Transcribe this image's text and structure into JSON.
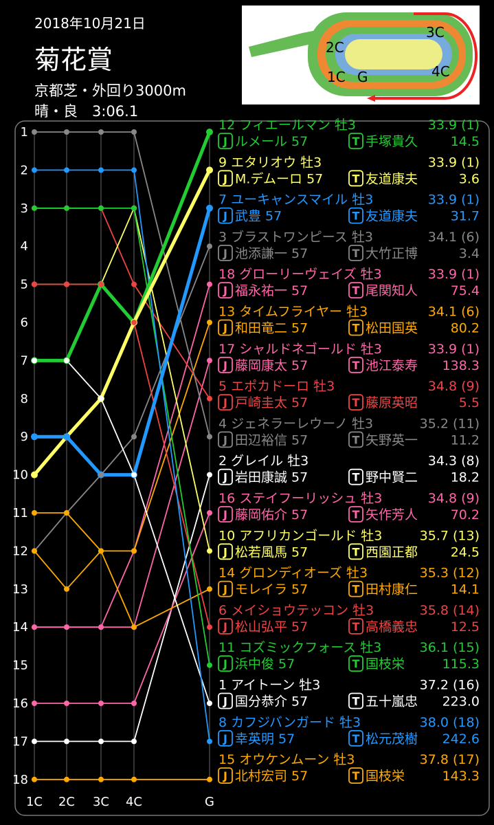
{
  "race": {
    "date": "2018年10月21日",
    "title": "菊花賞",
    "course": "京都芝・外回り3000m",
    "result": "晴・良　3:06.1"
  },
  "course_map": {
    "labels": [
      "2C",
      "3C",
      "1C",
      "G",
      "4C"
    ]
  },
  "jockey_mark": "J",
  "trainer_mark": "T",
  "chart_data": {
    "type": "line",
    "x": [
      "1C",
      "2C",
      "3C",
      "4C",
      "G"
    ],
    "y_ticks": [
      "1",
      "2",
      "3",
      "4",
      "5",
      "6",
      "7",
      "8",
      "9",
      "10",
      "11",
      "12",
      "13",
      "14",
      "15",
      "16",
      "17",
      "18"
    ],
    "ylim": [
      1,
      18
    ],
    "y_inverted": true,
    "series": [
      {
        "name": "12 フィエールマン 牡3",
        "last3f": "33.9 (1)",
        "jockey": "ルメール 57",
        "trainer": "手塚貴久",
        "odds": "14.5",
        "color": "#22cc33",
        "bold": true,
        "values": [
          7,
          7,
          5,
          6,
          1
        ]
      },
      {
        "name": "9 エタリオウ 牡3",
        "last3f": "33.9 (1)",
        "jockey": "M.デムーロ 57",
        "trainer": "友道康夫",
        "odds": "3.6",
        "color": "#ffff66",
        "bold": true,
        "values": [
          10,
          9,
          8,
          6,
          2
        ]
      },
      {
        "name": "7 ユーキャンスマイル 牡3",
        "last3f": "33.9 (1)",
        "jockey": "武豊 57",
        "trainer": "友道康夫",
        "odds": "31.7",
        "color": "#2299ff",
        "bold": true,
        "values": [
          9,
          9,
          10,
          10,
          3
        ]
      },
      {
        "name": "3 ブラストワンピース 牡3",
        "last3f": "34.1 (6)",
        "jockey": "池添謙一 57",
        "trainer": "大竹正博",
        "odds": "3.4",
        "color": "#888888",
        "values": [
          12,
          11,
          10,
          9,
          4
        ]
      },
      {
        "name": "18 グローリーヴェイズ 牡3",
        "last3f": "33.9 (1)",
        "jockey": "福永祐一 57",
        "trainer": "尾関知人",
        "odds": "75.4",
        "color": "#ff66aa",
        "values": [
          14,
          14,
          14,
          12,
          5
        ]
      },
      {
        "name": "13 タイムフライヤー 牡3",
        "last3f": "34.1 (6)",
        "jockey": "和田竜二 57",
        "trainer": "松田国英",
        "odds": "80.2",
        "color": "#ffaa00",
        "values": [
          11,
          11,
          12,
          12,
          6
        ]
      },
      {
        "name": "17 シャルドネゴールド 牡3",
        "last3f": "33.9 (1)",
        "jockey": "藤岡康太 57",
        "trainer": "池江泰寿",
        "odds": "138.3",
        "color": "#ff66aa",
        "values": [
          14,
          14,
          14,
          14,
          7
        ]
      },
      {
        "name": "5 エポカドーロ 牡3",
        "last3f": "34.8 (9)",
        "jockey": "戸崎圭太 57",
        "trainer": "藤原英昭",
        "odds": "5.5",
        "color": "#ee4444",
        "values": [
          3,
          3,
          3,
          5,
          8
        ]
      },
      {
        "name": "4 ジェネラーレウーノ 牡3",
        "last3f": "35.2 (11)",
        "jockey": "田辺裕信 57",
        "trainer": "矢野英一",
        "odds": "11.2",
        "color": "#888888",
        "values": [
          1,
          1,
          1,
          1,
          9
        ]
      },
      {
        "name": "2 グレイル 牡3",
        "last3f": "34.3 (8)",
        "jockey": "岩田康誠 57",
        "trainer": "野中賢二",
        "odds": "18.2",
        "color": "#ffffff",
        "values": [
          17,
          17,
          17,
          17,
          10
        ]
      },
      {
        "name": "16 ステイフーリッシュ 牡3",
        "last3f": "34.8 (9)",
        "jockey": "藤岡佑介 57",
        "trainer": "矢作芳人",
        "odds": "70.2",
        "color": "#ff66aa",
        "values": [
          16,
          16,
          16,
          16,
          11
        ]
      },
      {
        "name": "10 アフリカンゴールド 牡3",
        "last3f": "35.7 (13)",
        "jockey": "松若風馬 57",
        "trainer": "西園正都",
        "odds": "24.5",
        "color": "#ffff66",
        "values": [
          5,
          5,
          5,
          3,
          12
        ]
      },
      {
        "name": "14 グロンディオーズ 牡3",
        "last3f": "35.3 (12)",
        "jockey": "モレイラ 57",
        "trainer": "田村康仁",
        "odds": "14.1",
        "color": "#ffaa00",
        "values": [
          12,
          13,
          12,
          14,
          13
        ]
      },
      {
        "name": "6 メイショウテッコン 牡3",
        "last3f": "35.8 (14)",
        "jockey": "松山弘平 57",
        "trainer": "高橋義忠",
        "odds": "12.5",
        "color": "#ee4444",
        "values": [
          5,
          5,
          5,
          6,
          14
        ]
      },
      {
        "name": "11 コズミックフォース 牡3",
        "last3f": "36.1 (15)",
        "jockey": "浜中俊 57",
        "trainer": "国枝栄",
        "odds": "115.3",
        "color": "#22cc33",
        "values": [
          3,
          3,
          3,
          3,
          15
        ]
      },
      {
        "name": "1 アイトーン 牡3",
        "last3f": "37.2 (16)",
        "jockey": "国分恭介 57",
        "trainer": "五十嵐忠",
        "odds": "223.0",
        "color": "#ffffff",
        "values": [
          7,
          7,
          8,
          10,
          16
        ]
      },
      {
        "name": "8 カフジバンガード 牡3",
        "last3f": "38.0 (18)",
        "jockey": "幸英明 57",
        "trainer": "松元茂樹",
        "odds": "242.6",
        "color": "#2299ff",
        "values": [
          2,
          2,
          2,
          2,
          17
        ]
      },
      {
        "name": "15 オウケンムーン 牡3",
        "last3f": "37.8 (17)",
        "jockey": "北村宏司 57",
        "trainer": "国枝栄",
        "odds": "143.3",
        "color": "#ffaa00",
        "values": [
          18,
          18,
          18,
          18,
          18
        ]
      }
    ]
  }
}
